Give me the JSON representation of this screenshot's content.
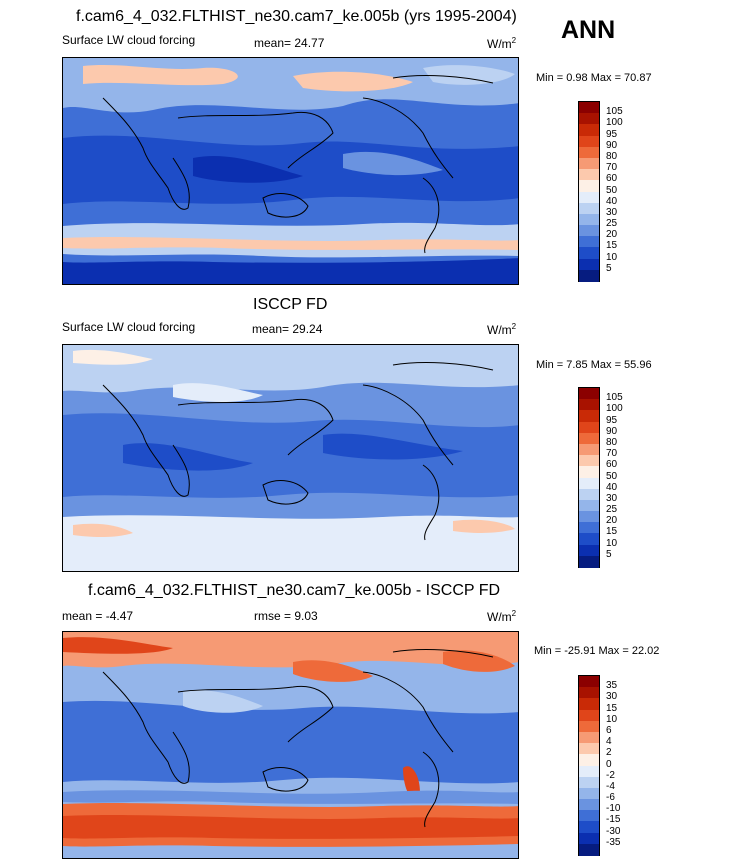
{
  "season": "ANN",
  "panels": [
    {
      "title": "f.cam6_4_032.FLTHIST_ne30.cam7_ke.005b (yrs 1995-2004)",
      "left_label": "Surface LW cloud forcing",
      "center_label": "mean=  24.77",
      "units": "W/m",
      "units_sup": "2",
      "minmax": "Min =   0.98 Max =  70.87",
      "colorbar": {
        "levels": [
          "105",
          "100",
          "95",
          "90",
          "80",
          "70",
          "60",
          "50",
          "40",
          "30",
          "25",
          "20",
          "15",
          "10",
          "5"
        ],
        "colors": [
          "#8b0000",
          "#a81200",
          "#c92a06",
          "#e0451a",
          "#ee6a3a",
          "#f69a74",
          "#fcc9ad",
          "#fdf0e6",
          "#e4edfa",
          "#bcd2f2",
          "#94b5ea",
          "#6a93e0",
          "#3f6fd6",
          "#1e4dc8",
          "#0b2fb0",
          "#061c80"
        ]
      },
      "map_fill": [
        "#3f6fd6",
        "#6a93e0",
        "#1e4dc8",
        "#94b5ea",
        "#bcd2f2",
        "#fcc9ad",
        "#0b2fb0"
      ]
    },
    {
      "title": "ISCCP FD",
      "left_label": "Surface LW cloud forcing",
      "center_label": "mean=  29.24",
      "units": "W/m",
      "units_sup": "2",
      "minmax": "Min =   7.85 Max =  55.96",
      "colorbar": {
        "levels": [
          "105",
          "100",
          "95",
          "90",
          "80",
          "70",
          "60",
          "50",
          "40",
          "30",
          "25",
          "20",
          "15",
          "10",
          "5"
        ],
        "colors": [
          "#8b0000",
          "#a81200",
          "#c92a06",
          "#e0451a",
          "#ee6a3a",
          "#f69a74",
          "#fcc9ad",
          "#fdf0e6",
          "#e4edfa",
          "#bcd2f2",
          "#94b5ea",
          "#6a93e0",
          "#3f6fd6",
          "#1e4dc8",
          "#0b2fb0",
          "#061c80"
        ]
      }
    },
    {
      "title": "f.cam6_4_032.FLTHIST_ne30.cam7_ke.005b - ISCCP FD",
      "left_label": "mean =  -4.47",
      "center_label": "rmse =   9.03",
      "units": "W/m",
      "units_sup": "2",
      "minmax": "Min = -25.91 Max =  22.02",
      "colorbar": {
        "levels": [
          "35",
          "30",
          "15",
          "10",
          "6",
          "4",
          "2",
          "0",
          "-2",
          "-4",
          "-6",
          "-10",
          "-15",
          "-30",
          "-35"
        ],
        "colors": [
          "#8b0000",
          "#a81200",
          "#c92a06",
          "#e0451a",
          "#ee6a3a",
          "#f69a74",
          "#fcc9ad",
          "#fdf0e6",
          "#e4edfa",
          "#bcd2f2",
          "#94b5ea",
          "#6a93e0",
          "#3f6fd6",
          "#1e4dc8",
          "#0b2fb0",
          "#061c80"
        ]
      }
    }
  ],
  "chart_data": [
    {
      "type": "heatmap",
      "title": "f.cam6_4_032.FLTHIST_ne30.cam7_ke.005b (yrs 1995-2004)",
      "variable": "Surface LW cloud forcing",
      "units": "W/m2",
      "mean": 24.77,
      "min": 0.98,
      "max": 70.87,
      "contour_levels": [
        5,
        10,
        15,
        20,
        25,
        30,
        40,
        50,
        60,
        70,
        80,
        90,
        95,
        100,
        105
      ]
    },
    {
      "type": "heatmap",
      "title": "ISCCP FD",
      "variable": "Surface LW cloud forcing",
      "units": "W/m2",
      "mean": 29.24,
      "min": 7.85,
      "max": 55.96,
      "contour_levels": [
        5,
        10,
        15,
        20,
        25,
        30,
        40,
        50,
        60,
        70,
        80,
        90,
        95,
        100,
        105
      ]
    },
    {
      "type": "heatmap",
      "title": "f.cam6_4_032.FLTHIST_ne30.cam7_ke.005b - ISCCP FD",
      "units": "W/m2",
      "mean": -4.47,
      "rmse": 9.03,
      "min": -25.91,
      "max": 22.02,
      "contour_levels": [
        -35,
        -30,
        -15,
        -10,
        -6,
        -4,
        -2,
        0,
        2,
        4,
        6,
        10,
        15,
        30,
        35
      ]
    }
  ]
}
